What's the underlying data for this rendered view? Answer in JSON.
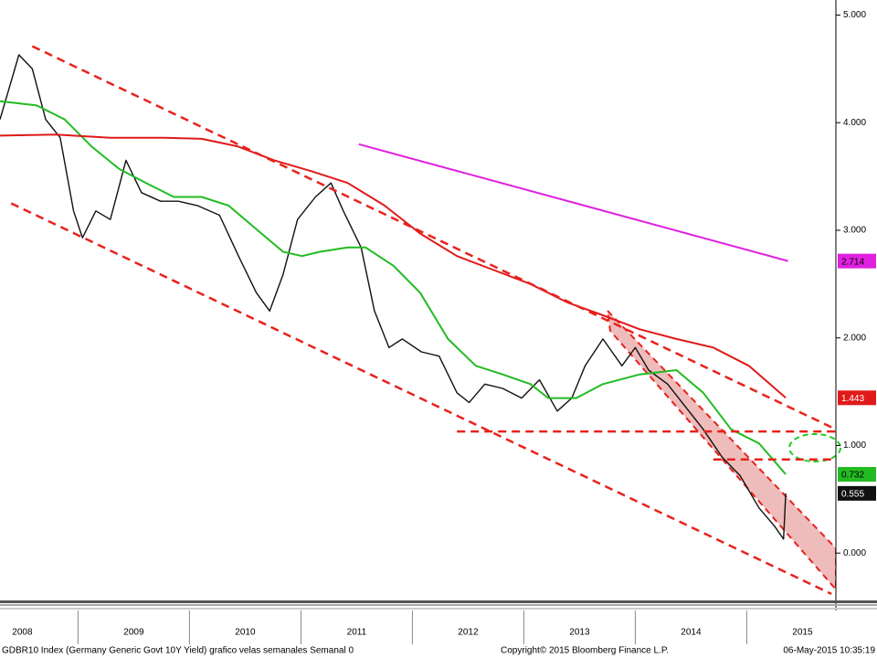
{
  "chart_data": {
    "type": "line",
    "xlim": [
      2008.3,
      2015.8
    ],
    "ylim": [
      -0.44,
      5.14
    ],
    "yticks": [
      {
        "value": 0,
        "label": "0.000"
      },
      {
        "value": 1,
        "label": "1.000"
      },
      {
        "value": 2,
        "label": "2.000"
      },
      {
        "value": 3,
        "label": "3.000"
      },
      {
        "value": 4,
        "label": "4.000"
      },
      {
        "value": 5,
        "label": "5.000"
      }
    ],
    "xticks": [
      {
        "value": 2008.5,
        "label": "2008"
      },
      {
        "value": 2009.5,
        "label": "2009"
      },
      {
        "value": 2010.5,
        "label": "2010"
      },
      {
        "value": 2011.5,
        "label": "2011"
      },
      {
        "value": 2012.5,
        "label": "2012"
      },
      {
        "value": 2013.5,
        "label": "2013"
      },
      {
        "value": 2014.5,
        "label": "2014"
      },
      {
        "value": 2015.5,
        "label": "2015"
      }
    ],
    "x_dividers": [
      2009,
      2010,
      2011,
      2012,
      2013,
      2014,
      2015
    ],
    "series": [
      {
        "color": "#111111",
        "width": 1.4,
        "last_label": true,
        "x": [
          2008.3,
          2008.47,
          2008.59,
          2008.71,
          2008.84,
          2008.96,
          2009.04,
          2009.16,
          2009.29,
          2009.43,
          2009.57,
          2009.74,
          2009.9,
          2010.07,
          2010.27,
          2010.44,
          2010.6,
          2010.72,
          2010.84,
          2010.97,
          2011.13,
          2011.27,
          2011.38,
          2011.54,
          2011.66,
          2011.79,
          2011.91,
          2012.08,
          2012.24,
          2012.4,
          2012.51,
          2012.65,
          2012.81,
          2012.98,
          2013.14,
          2013.3,
          2013.43,
          2013.55,
          2013.71,
          2013.88,
          2014.0,
          2014.12,
          2014.29,
          2014.45,
          2014.61,
          2014.78,
          2014.94,
          2015.11,
          2015.25,
          2015.33,
          2015.35
        ],
        "values": [
          4.03,
          4.63,
          4.5,
          4.03,
          3.86,
          3.18,
          2.93,
          3.18,
          3.1,
          3.65,
          3.35,
          3.27,
          3.27,
          3.23,
          3.14,
          2.76,
          2.42,
          2.25,
          2.59,
          3.1,
          3.31,
          3.44,
          3.18,
          2.84,
          2.25,
          1.91,
          1.99,
          1.87,
          1.83,
          1.49,
          1.4,
          1.57,
          1.53,
          1.44,
          1.61,
          1.32,
          1.44,
          1.74,
          1.99,
          1.74,
          1.91,
          1.7,
          1.57,
          1.36,
          1.15,
          0.89,
          0.72,
          0.42,
          0.25,
          0.13,
          0.555
        ]
      },
      {
        "color": "#22bb22",
        "width": 2,
        "last_label": true,
        "x": [
          2008.3,
          2008.63,
          2008.88,
          2009.12,
          2009.37,
          2009.61,
          2009.86,
          2010.11,
          2010.35,
          2010.6,
          2010.84,
          2011.01,
          2011.17,
          2011.42,
          2011.58,
          2011.83,
          2012.07,
          2012.32,
          2012.57,
          2012.81,
          2013.06,
          2013.22,
          2013.47,
          2013.71,
          2014.04,
          2014.37,
          2014.61,
          2014.86,
          2015.11,
          2015.35
        ],
        "values": [
          4.2,
          4.16,
          4.03,
          3.78,
          3.57,
          3.44,
          3.31,
          3.31,
          3.23,
          3.01,
          2.8,
          2.76,
          2.8,
          2.84,
          2.84,
          2.67,
          2.42,
          1.99,
          1.74,
          1.66,
          1.57,
          1.44,
          1.44,
          1.57,
          1.66,
          1.7,
          1.49,
          1.15,
          1.02,
          0.732
        ]
      },
      {
        "color": "#e01a1a",
        "width": 2,
        "last_label": true,
        "x": [
          2008.3,
          2008.8,
          2009.29,
          2009.78,
          2010.11,
          2010.43,
          2010.76,
          2011.09,
          2011.42,
          2011.75,
          2012.07,
          2012.4,
          2012.73,
          2013.06,
          2013.39,
          2013.71,
          2014.04,
          2014.37,
          2014.7,
          2015.02,
          2015.35
        ],
        "values": [
          3.88,
          3.89,
          3.86,
          3.86,
          3.85,
          3.78,
          3.65,
          3.55,
          3.44,
          3.23,
          2.97,
          2.76,
          2.63,
          2.5,
          2.33,
          2.21,
          2.08,
          1.99,
          1.91,
          1.74,
          1.443
        ]
      },
      {
        "color": "#e020e0",
        "width": 2,
        "last_label": true,
        "x": [
          2011.52,
          2015.37
        ],
        "values": [
          3.8,
          2.714
        ]
      },
      {
        "color": "#e8221c",
        "width": 2.5,
        "dash": true,
        "x": [
          2008.59,
          2015.8
        ],
        "values": [
          4.71,
          1.15
        ]
      },
      {
        "color": "#e8221c",
        "width": 2.5,
        "dash": true,
        "x": [
          2008.4,
          2015.76
        ],
        "values": [
          3.25,
          -0.38
        ]
      },
      {
        "color": "#e8221c",
        "width": 2.5,
        "dash": true,
        "x": [
          2012.4,
          2015.8
        ],
        "values": [
          1.13,
          1.13
        ]
      },
      {
        "color": "#e8221c",
        "width": 2.5,
        "dash": true,
        "x": [
          2014.7,
          2015.8
        ],
        "values": [
          0.87,
          0.87
        ]
      }
    ],
    "footer_left": "GDBR10 Index (Germany Generic Govt 10Y Yield) grafico velas semanales  Semanal 0",
    "footer_center": "Copyright© 2015 Bloomberg Finance L.P.",
    "footer_right": "06-May-2015 10:35:19"
  }
}
